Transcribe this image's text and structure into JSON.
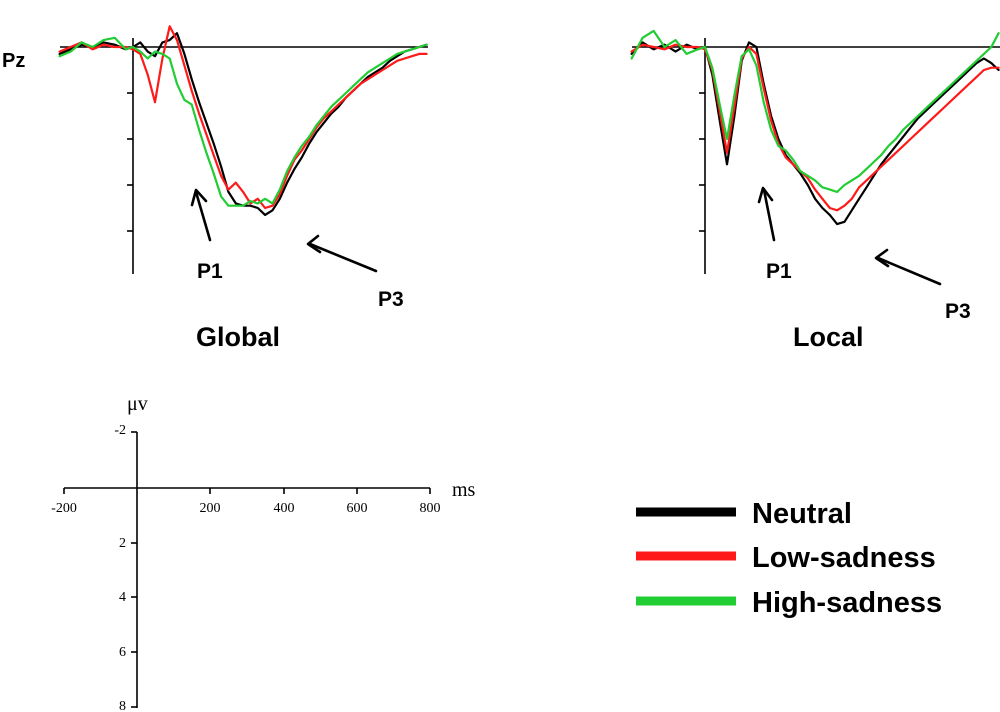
{
  "electrode_label": "Pz",
  "colors": {
    "Neutral": "#000000",
    "Low-sadness": "#ff1a1a",
    "High-sadness": "#22cc33"
  },
  "legend": {
    "items": [
      {
        "label": "Neutral",
        "color": "#000000"
      },
      {
        "label": "Low-sadness",
        "color": "#ff1a1a"
      },
      {
        "label": "High-sadness",
        "color": "#22cc33"
      }
    ]
  },
  "scale_bar": {
    "x_unit": "ms",
    "y_unit": "μv",
    "x_ticks": [
      -200,
      200,
      400,
      600,
      800
    ],
    "y_ticks": [
      -2,
      2,
      4,
      6,
      8
    ]
  },
  "chart_data": [
    {
      "type": "line",
      "title": "Global",
      "xlabel": "ms",
      "ylabel": "μv",
      "xlim": [
        -200,
        800
      ],
      "ylim": [
        -2,
        8
      ],
      "y_inverted": true,
      "annotations": [
        "P1",
        "P3"
      ],
      "series": [
        {
          "name": "Neutral",
          "x": [
            -200,
            -170,
            -140,
            -110,
            -80,
            -50,
            -20,
            0,
            20,
            40,
            60,
            80,
            100,
            120,
            140,
            160,
            180,
            200,
            220,
            240,
            260,
            280,
            300,
            320,
            340,
            360,
            380,
            400,
            420,
            440,
            460,
            480,
            500,
            520,
            540,
            560,
            580,
            600,
            620,
            640,
            660,
            680,
            700,
            720,
            740,
            760,
            780,
            800
          ],
          "y": [
            0.3,
            0.1,
            -0.1,
            0.0,
            -0.2,
            -0.1,
            0.1,
            0.0,
            -0.2,
            0.2,
            0.4,
            -0.2,
            -0.3,
            -0.6,
            0.3,
            1.4,
            2.4,
            3.3,
            4.2,
            5.2,
            6.3,
            6.8,
            6.9,
            6.9,
            7.0,
            7.3,
            7.1,
            6.6,
            5.9,
            5.3,
            4.8,
            4.2,
            3.7,
            3.3,
            2.9,
            2.6,
            2.2,
            1.9,
            1.6,
            1.3,
            1.1,
            0.9,
            0.6,
            0.4,
            0.2,
            0.1,
            0.0,
            -0.1
          ]
        },
        {
          "name": "Low-sadness",
          "x": [
            -200,
            -170,
            -140,
            -110,
            -80,
            -50,
            -20,
            0,
            20,
            40,
            60,
            80,
            100,
            120,
            140,
            160,
            180,
            200,
            220,
            240,
            260,
            280,
            300,
            320,
            340,
            360,
            380,
            400,
            420,
            440,
            460,
            480,
            500,
            520,
            540,
            560,
            580,
            600,
            620,
            640,
            660,
            680,
            700,
            720,
            740,
            760,
            780,
            800
          ],
          "y": [
            0.2,
            0.0,
            -0.2,
            0.1,
            -0.1,
            0.0,
            0.0,
            0.1,
            0.3,
            1.2,
            2.4,
            0.5,
            -0.9,
            -0.3,
            0.8,
            1.9,
            2.9,
            3.8,
            4.7,
            5.6,
            6.2,
            5.9,
            6.3,
            6.8,
            6.6,
            7.0,
            6.9,
            6.4,
            5.6,
            4.9,
            4.5,
            4.0,
            3.5,
            3.1,
            2.8,
            2.5,
            2.2,
            1.9,
            1.6,
            1.4,
            1.2,
            1.0,
            0.8,
            0.6,
            0.5,
            0.4,
            0.3,
            0.3
          ]
        },
        {
          "name": "High-sadness",
          "x": [
            -200,
            -170,
            -140,
            -110,
            -80,
            -50,
            -20,
            0,
            20,
            40,
            60,
            80,
            100,
            120,
            140,
            160,
            180,
            200,
            220,
            240,
            260,
            280,
            300,
            320,
            340,
            360,
            380,
            400,
            420,
            440,
            460,
            480,
            500,
            520,
            540,
            560,
            580,
            600,
            620,
            640,
            660,
            680,
            700,
            720,
            740,
            760,
            780,
            800
          ],
          "y": [
            0.4,
            0.2,
            -0.2,
            0.0,
            -0.3,
            -0.4,
            0.1,
            0.0,
            0.2,
            0.5,
            0.2,
            0.3,
            0.5,
            1.6,
            2.3,
            2.5,
            3.6,
            4.6,
            5.5,
            6.5,
            6.9,
            6.9,
            6.9,
            6.7,
            6.8,
            6.6,
            6.8,
            6.2,
            5.4,
            4.8,
            4.3,
            3.9,
            3.4,
            3.0,
            2.6,
            2.3,
            2.0,
            1.7,
            1.4,
            1.1,
            0.9,
            0.7,
            0.5,
            0.3,
            0.2,
            0.1,
            0.0,
            -0.1
          ]
        }
      ]
    },
    {
      "type": "line",
      "title": "Local",
      "xlabel": "ms",
      "ylabel": "μv",
      "xlim": [
        -200,
        800
      ],
      "ylim": [
        -2,
        8
      ],
      "y_inverted": true,
      "annotations": [
        "P1",
        "P3"
      ],
      "series": [
        {
          "name": "Neutral",
          "x": [
            -200,
            -170,
            -140,
            -110,
            -80,
            -50,
            -20,
            0,
            20,
            40,
            60,
            80,
            100,
            120,
            140,
            160,
            180,
            200,
            220,
            240,
            260,
            280,
            300,
            320,
            340,
            360,
            380,
            400,
            420,
            440,
            460,
            480,
            500,
            520,
            540,
            560,
            580,
            600,
            620,
            640,
            660,
            680,
            700,
            720,
            740,
            760,
            780,
            800
          ],
          "y": [
            0.3,
            -0.2,
            0.1,
            -0.1,
            0.2,
            -0.1,
            0.1,
            0.0,
            1.2,
            3.2,
            5.1,
            3.0,
            0.6,
            -0.2,
            0.0,
            1.6,
            3.0,
            4.0,
            4.7,
            5.1,
            5.5,
            6.0,
            6.6,
            7.0,
            7.3,
            7.7,
            7.6,
            7.1,
            6.6,
            6.1,
            5.6,
            5.1,
            4.7,
            4.3,
            3.9,
            3.5,
            3.1,
            2.8,
            2.5,
            2.2,
            1.9,
            1.6,
            1.3,
            1.0,
            0.7,
            0.5,
            0.7,
            1.0
          ]
        },
        {
          "name": "Low-sadness",
          "x": [
            -200,
            -170,
            -140,
            -110,
            -80,
            -50,
            -20,
            0,
            20,
            40,
            60,
            80,
            100,
            120,
            140,
            160,
            180,
            200,
            220,
            240,
            260,
            280,
            300,
            320,
            340,
            360,
            380,
            400,
            420,
            440,
            460,
            480,
            500,
            520,
            540,
            560,
            580,
            600,
            620,
            640,
            660,
            680,
            700,
            720,
            740,
            760,
            780,
            800
          ],
          "y": [
            0.2,
            -0.1,
            0.0,
            0.1,
            -0.1,
            0.0,
            0.0,
            0.1,
            1.0,
            2.8,
            4.6,
            2.6,
            0.5,
            0.0,
            0.3,
            1.8,
            3.2,
            4.2,
            4.8,
            5.1,
            5.4,
            5.7,
            6.2,
            6.6,
            7.0,
            7.1,
            6.9,
            6.6,
            6.1,
            5.8,
            5.5,
            5.2,
            4.9,
            4.6,
            4.3,
            4.0,
            3.7,
            3.4,
            3.1,
            2.8,
            2.5,
            2.2,
            1.9,
            1.6,
            1.3,
            1.0,
            0.9,
            0.9
          ]
        },
        {
          "name": "High-sadness",
          "x": [
            -200,
            -170,
            -140,
            -110,
            -80,
            -50,
            -20,
            0,
            20,
            40,
            60,
            80,
            100,
            120,
            140,
            160,
            180,
            200,
            220,
            240,
            260,
            280,
            300,
            320,
            340,
            360,
            380,
            400,
            420,
            440,
            460,
            480,
            500,
            520,
            540,
            560,
            580,
            600,
            620,
            640,
            660,
            680,
            700,
            720,
            740,
            760,
            780,
            800
          ],
          "y": [
            0.5,
            -0.4,
            -0.7,
            0.0,
            -0.3,
            0.3,
            0.1,
            0.0,
            0.9,
            2.5,
            4.0,
            2.1,
            0.4,
            0.1,
            0.8,
            2.4,
            3.6,
            4.3,
            4.5,
            4.9,
            5.4,
            5.6,
            5.8,
            6.1,
            6.2,
            6.3,
            6.0,
            5.8,
            5.6,
            5.3,
            5.0,
            4.7,
            4.3,
            4.0,
            3.6,
            3.3,
            3.0,
            2.7,
            2.4,
            2.1,
            1.8,
            1.5,
            1.2,
            0.9,
            0.6,
            0.3,
            0.0,
            -0.6
          ]
        }
      ]
    }
  ]
}
